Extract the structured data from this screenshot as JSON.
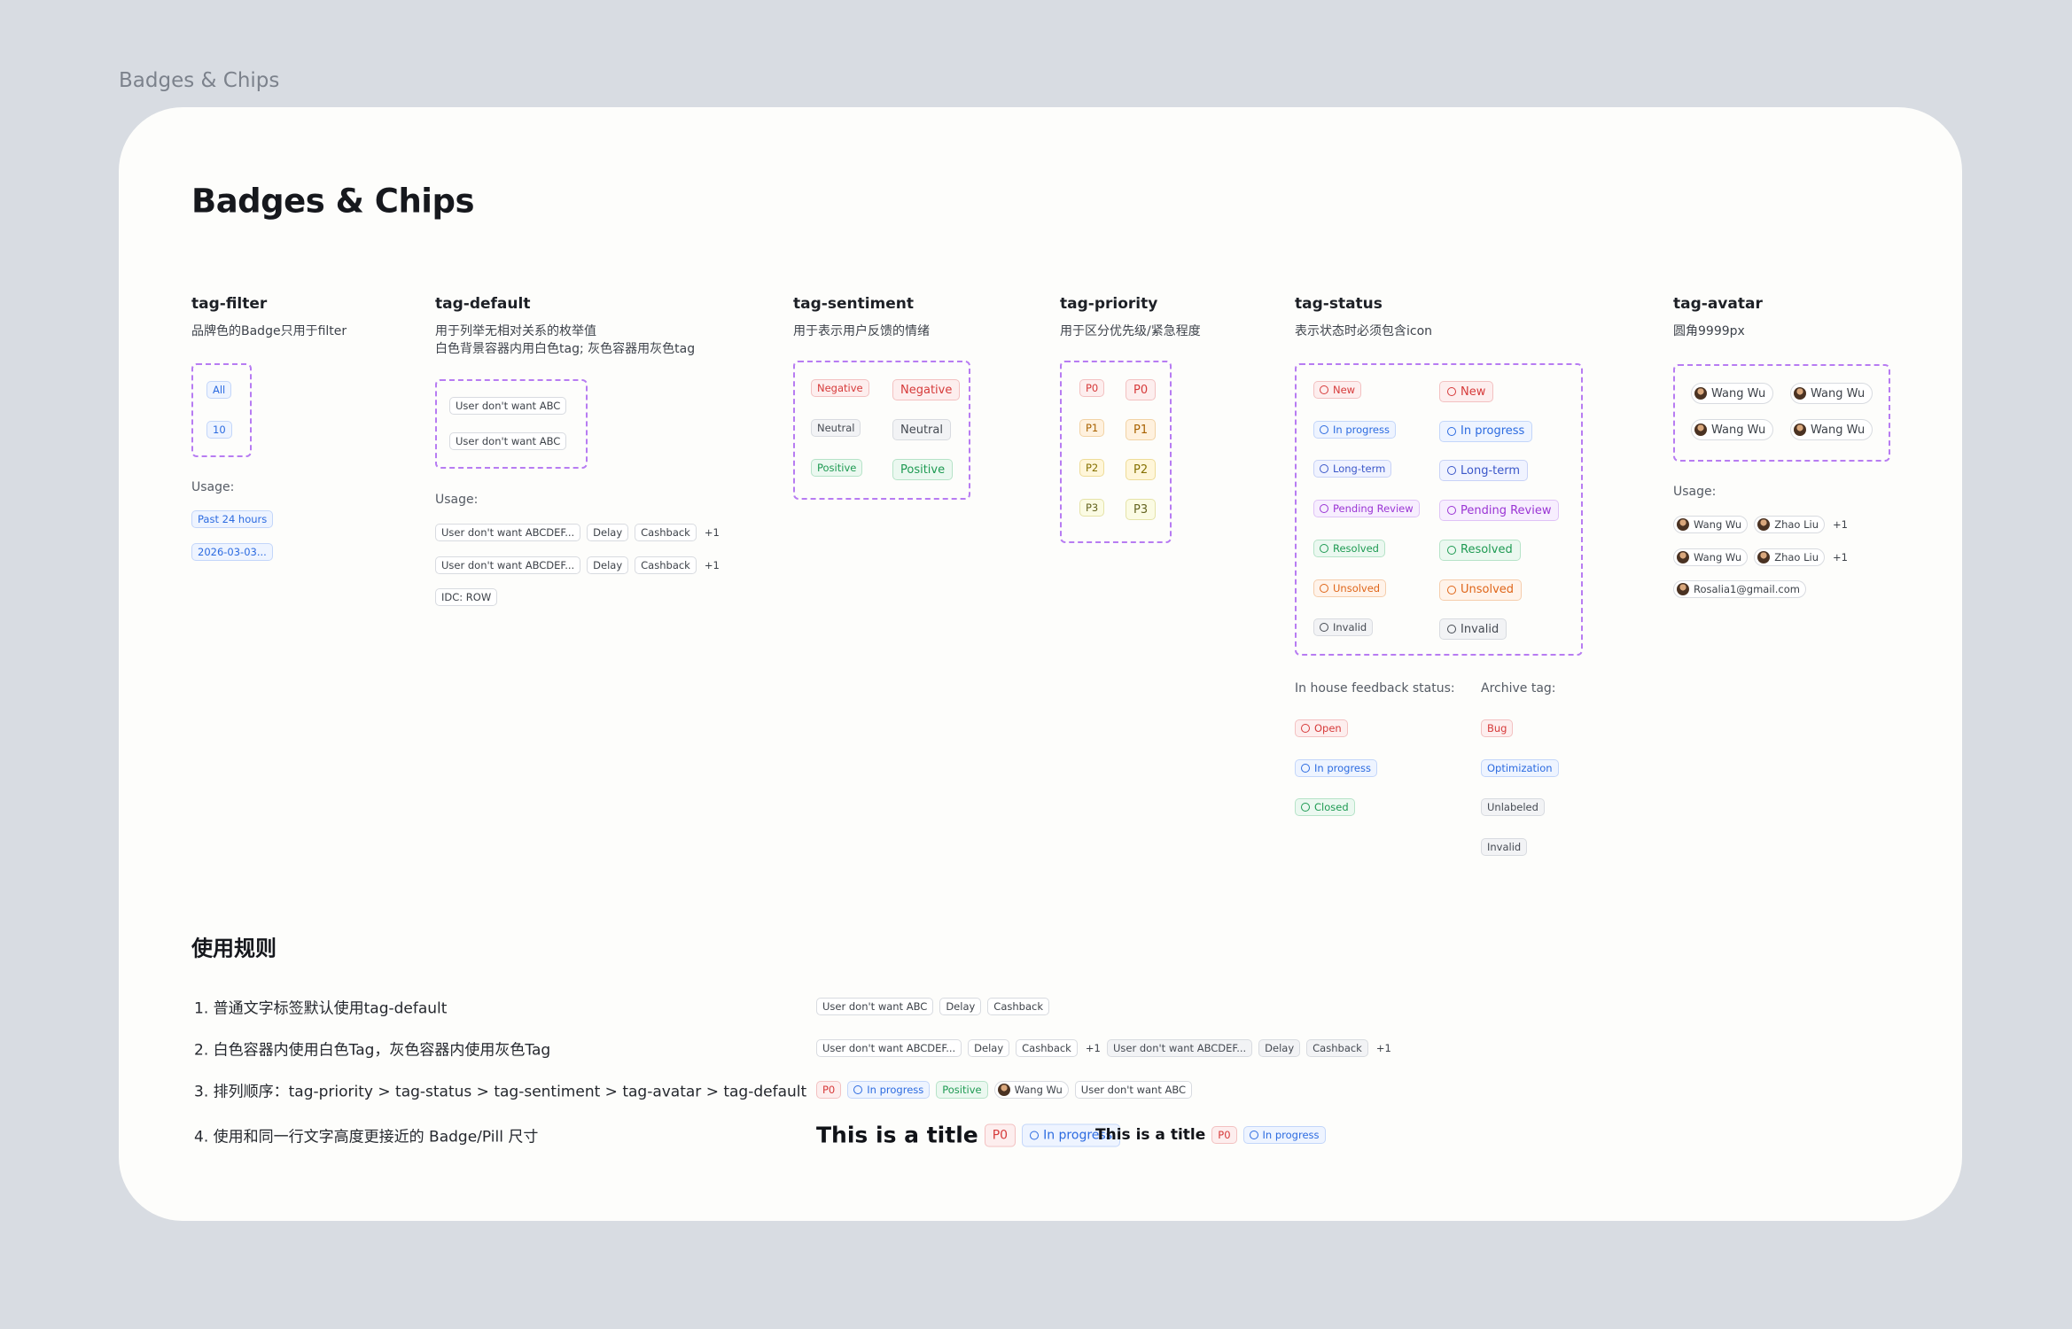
{
  "page_label": "Badges & Chips",
  "title": "Badges & Chips",
  "filter": {
    "name": "tag-filter",
    "desc": [
      "品牌色的Badge只用于filter"
    ],
    "samples": [
      "All",
      "10"
    ],
    "usage_label": "Usage:",
    "usage": [
      "Past 24 hours",
      "2026-03-03..."
    ]
  },
  "default": {
    "name": "tag-default",
    "desc": [
      "用于列举无相对关系的枚举值",
      "白色背景容器内用白色tag; 灰色容器用灰色tag"
    ],
    "samples": [
      "User don't want ABC",
      "User don't want ABC"
    ],
    "usage_label": "Usage:",
    "usage": [
      [
        "User don't want ABCDEF...",
        "Delay",
        "Cashback",
        {
          "text": "+1",
          "tone": "plain"
        }
      ],
      [
        "User don't want ABCDEF...",
        "Delay",
        "Cashback",
        {
          "text": "+1",
          "tone": "plain"
        }
      ],
      [
        "IDC: ROW"
      ]
    ]
  },
  "sentiment": {
    "name": "tag-sentiment",
    "desc": [
      "用于表示用户反馈的情绪"
    ],
    "variants": [
      [
        {
          "text": "Negative",
          "tone": "red"
        },
        {
          "text": "Neutral",
          "tone": "gray"
        },
        {
          "text": "Positive",
          "tone": "green"
        }
      ],
      [
        {
          "text": "Negative",
          "tone": "red"
        },
        {
          "text": "Neutral",
          "tone": "gray"
        },
        {
          "text": "Positive",
          "tone": "green"
        }
      ]
    ]
  },
  "priority": {
    "name": "tag-priority",
    "desc": [
      "用于区分优先级/紧急程度"
    ],
    "variants": [
      [
        {
          "text": "P0",
          "tone": "red"
        },
        {
          "text": "P1",
          "tone": "peach"
        },
        {
          "text": "P2",
          "tone": "yellow"
        },
        {
          "text": "P3",
          "tone": "lime"
        }
      ],
      [
        {
          "text": "P0",
          "tone": "red"
        },
        {
          "text": "P1",
          "tone": "peach"
        },
        {
          "text": "P2",
          "tone": "yellow"
        },
        {
          "text": "P3",
          "tone": "lime"
        }
      ]
    ]
  },
  "status": {
    "name": "tag-status",
    "desc": [
      "表示状态时必须包含icon"
    ],
    "variants": [
      [
        {
          "text": "New",
          "tone": "red",
          "icon": true
        },
        {
          "text": "In progress",
          "tone": "blue",
          "icon": true
        },
        {
          "text": "Long-term",
          "tone": "indigo",
          "icon": true
        },
        {
          "text": "Pending Review",
          "tone": "purple",
          "icon": true
        },
        {
          "text": "Resolved",
          "tone": "green",
          "icon": true
        },
        {
          "text": "Unsolved",
          "tone": "orange",
          "icon": true
        },
        {
          "text": "Invalid",
          "tone": "gray",
          "icon": true
        }
      ],
      [
        {
          "text": "New",
          "tone": "red",
          "icon": true
        },
        {
          "text": "In progress",
          "tone": "blue",
          "icon": true
        },
        {
          "text": "Long-term",
          "tone": "indigo",
          "icon": true
        },
        {
          "text": "Pending Review",
          "tone": "purple",
          "icon": true
        },
        {
          "text": "Resolved",
          "tone": "green",
          "icon": true
        },
        {
          "text": "Unsolved",
          "tone": "orange",
          "icon": true
        },
        {
          "text": "Invalid",
          "tone": "gray",
          "icon": true
        }
      ]
    ],
    "inhouse": {
      "label": "In house feedback status:",
      "items": [
        {
          "text": "Open",
          "tone": "red",
          "icon": true
        },
        {
          "text": "In progress",
          "tone": "blue",
          "icon": true
        },
        {
          "text": "Closed",
          "tone": "green",
          "icon": true
        }
      ]
    },
    "archive": {
      "label": "Archive tag:",
      "items": [
        {
          "text": "Bug",
          "tone": "red"
        },
        {
          "text": "Optimization",
          "tone": "blue"
        },
        {
          "text": "Unlabeled",
          "tone": "gray"
        },
        {
          "text": "Invalid",
          "tone": "gray"
        }
      ]
    }
  },
  "avatar": {
    "name": "tag-avatar",
    "desc": [
      "圆角9999px"
    ],
    "samples": [
      "Wang Wu",
      "Wang Wu",
      "Wang Wu",
      "Wang Wu"
    ],
    "usage_label": "Usage:",
    "usage": [
      [
        "Wang Wu",
        "Zhao Liu",
        {
          "text": "+1",
          "tone": "plain"
        }
      ],
      [
        "Wang Wu",
        "Zhao Liu",
        {
          "text": "+1",
          "tone": "plain"
        }
      ],
      [
        "Rosalia1@gmail.com"
      ]
    ]
  },
  "rules": {
    "heading": "使用规则",
    "items": [
      "1. 普通文字标签默认使用tag-default",
      "2. 白色容器内使用白色Tag，灰色容器内使用灰色Tag",
      "3. 排列顺序：tag-priority > tag-status > tag-sentiment > tag-avatar > tag-default",
      "4. 使用和同一行文字高度更接近的 Badge/Pill 尺寸"
    ],
    "examples": [
      [
        [
          "User don't want ABC",
          "Delay",
          "Cashback"
        ]
      ],
      [
        [
          "User don't want ABCDEF...",
          "Delay",
          "Cashback",
          {
            "text": "+1",
            "tone": "plain"
          }
        ],
        [
          {
            "text": "User don't want ABCDEF...",
            "tone": "gray"
          },
          {
            "text": "Delay",
            "tone": "gray"
          },
          {
            "text": "Cashback",
            "tone": "gray"
          },
          {
            "text": "+1",
            "tone": "plain"
          }
        ]
      ],
      [
        [
          {
            "text": "P0",
            "tone": "red"
          },
          {
            "text": "In progress",
            "tone": "blue",
            "icon": true
          },
          {
            "text": "Positive",
            "tone": "green"
          },
          {
            "text": "Wang Wu",
            "tone": "avatar"
          },
          "User don't want ABC"
        ]
      ],
      [
        [
          {
            "text": "This is a title",
            "tone": "title"
          },
          {
            "text": "P0",
            "tone": "red"
          },
          {
            "text": "In progress",
            "tone": "blue",
            "icon": true
          }
        ],
        [
          {
            "text": "This is a title",
            "tone": "title"
          },
          {
            "text": "P0",
            "tone": "red"
          },
          {
            "text": "In progress",
            "tone": "blue",
            "icon": true
          }
        ]
      ]
    ]
  }
}
